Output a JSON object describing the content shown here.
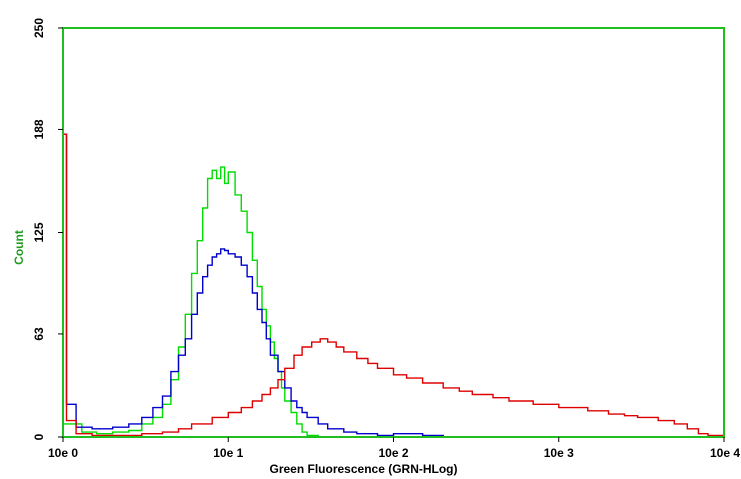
{
  "chart_data": {
    "type": "line",
    "title": "",
    "xlabel": "Green Fluorescence (GRN-HLog)",
    "ylabel": "Count",
    "x_scale": "log",
    "xlim": [
      1,
      10000
    ],
    "ylim": [
      0,
      250
    ],
    "x_ticks": [
      1,
      10,
      100,
      1000,
      10000
    ],
    "x_tick_labels": [
      "10e 0",
      "10e 1",
      "10e 2",
      "10e 3",
      "10e 4"
    ],
    "y_ticks": [
      0,
      63,
      125,
      188,
      250
    ],
    "y_tick_labels": [
      "0",
      "63",
      "125",
      "188",
      "250"
    ],
    "grid": false,
    "legend": "none",
    "colors": {
      "frame": "#1fbf1f",
      "axis_label": "#1f9c1f",
      "plot_background": "#ffffff"
    },
    "series": [
      {
        "color": "#00dd00",
        "points": [
          [
            1.0,
            8
          ],
          [
            1.3,
            3
          ],
          [
            1.6,
            2
          ],
          [
            2.0,
            3
          ],
          [
            2.5,
            4
          ],
          [
            3.0,
            8
          ],
          [
            3.5,
            12
          ],
          [
            4.0,
            20
          ],
          [
            4.5,
            35
          ],
          [
            5.0,
            55
          ],
          [
            5.5,
            75
          ],
          [
            6.0,
            100
          ],
          [
            6.5,
            120
          ],
          [
            7.0,
            140
          ],
          [
            7.5,
            158
          ],
          [
            8.0,
            163
          ],
          [
            8.5,
            158
          ],
          [
            9.0,
            165
          ],
          [
            9.5,
            155
          ],
          [
            10.0,
            162
          ],
          [
            11.0,
            148
          ],
          [
            12.0,
            138
          ],
          [
            13.0,
            125
          ],
          [
            14.0,
            108
          ],
          [
            15.0,
            92
          ],
          [
            16.0,
            78
          ],
          [
            17.0,
            68
          ],
          [
            18.0,
            58
          ],
          [
            19.0,
            48
          ],
          [
            20.0,
            40
          ],
          [
            21.0,
            30
          ],
          [
            22.0,
            22
          ],
          [
            24.0,
            15
          ],
          [
            26.0,
            8
          ],
          [
            28.0,
            3
          ],
          [
            30.0,
            1
          ],
          [
            35.0,
            0
          ],
          [
            10000,
            0
          ]
        ]
      },
      {
        "color": "#0000cc",
        "points": [
          [
            1.0,
            185
          ],
          [
            1.05,
            20
          ],
          [
            1.2,
            6
          ],
          [
            1.5,
            5
          ],
          [
            2.0,
            6
          ],
          [
            2.5,
            8
          ],
          [
            3.0,
            12
          ],
          [
            3.5,
            18
          ],
          [
            4.0,
            25
          ],
          [
            4.5,
            40
          ],
          [
            5.0,
            50
          ],
          [
            5.5,
            60
          ],
          [
            6.0,
            75
          ],
          [
            6.5,
            88
          ],
          [
            7.0,
            98
          ],
          [
            7.5,
            105
          ],
          [
            8.0,
            110
          ],
          [
            8.5,
            112
          ],
          [
            9.0,
            115
          ],
          [
            9.5,
            114
          ],
          [
            10.0,
            112
          ],
          [
            11.0,
            110
          ],
          [
            12.0,
            105
          ],
          [
            13.0,
            98
          ],
          [
            14.0,
            88
          ],
          [
            15.0,
            78
          ],
          [
            16.0,
            70
          ],
          [
            17.0,
            60
          ],
          [
            18.0,
            50
          ],
          [
            20.0,
            40
          ],
          [
            22.0,
            30
          ],
          [
            24.0,
            22
          ],
          [
            26.0,
            18
          ],
          [
            28.0,
            15
          ],
          [
            30.0,
            12
          ],
          [
            35.0,
            8
          ],
          [
            40.0,
            5
          ],
          [
            50.0,
            3
          ],
          [
            60.0,
            2
          ],
          [
            80.0,
            1
          ],
          [
            100.0,
            2
          ],
          [
            150.0,
            1
          ],
          [
            200.0,
            0
          ],
          [
            10000,
            0
          ]
        ]
      },
      {
        "color": "#dd0000",
        "points": [
          [
            1.0,
            185
          ],
          [
            1.05,
            10
          ],
          [
            1.2,
            2
          ],
          [
            1.5,
            1
          ],
          [
            2.0,
            1
          ],
          [
            3.0,
            2
          ],
          [
            4.0,
            3
          ],
          [
            5.0,
            5
          ],
          [
            6.0,
            8
          ],
          [
            8.0,
            12
          ],
          [
            10.0,
            15
          ],
          [
            12.0,
            18
          ],
          [
            14.0,
            22
          ],
          [
            16.0,
            26
          ],
          [
            18.0,
            30
          ],
          [
            20.0,
            35
          ],
          [
            22.0,
            42
          ],
          [
            25.0,
            50
          ],
          [
            28.0,
            55
          ],
          [
            32.0,
            58
          ],
          [
            36.0,
            60
          ],
          [
            40.0,
            58
          ],
          [
            45.0,
            55
          ],
          [
            50.0,
            52
          ],
          [
            60.0,
            48
          ],
          [
            70.0,
            45
          ],
          [
            80.0,
            42
          ],
          [
            100.0,
            38
          ],
          [
            120.0,
            36
          ],
          [
            150.0,
            33
          ],
          [
            200.0,
            30
          ],
          [
            250.0,
            28
          ],
          [
            300.0,
            26
          ],
          [
            400.0,
            24
          ],
          [
            500.0,
            22
          ],
          [
            700.0,
            20
          ],
          [
            1000.0,
            18
          ],
          [
            1500.0,
            16
          ],
          [
            2000.0,
            14
          ],
          [
            2500.0,
            13
          ],
          [
            3000.0,
            12
          ],
          [
            4000.0,
            10
          ],
          [
            5000.0,
            8
          ],
          [
            6000.0,
            5
          ],
          [
            7000.0,
            2
          ],
          [
            8000.0,
            1
          ],
          [
            10000,
            0
          ]
        ]
      }
    ]
  }
}
